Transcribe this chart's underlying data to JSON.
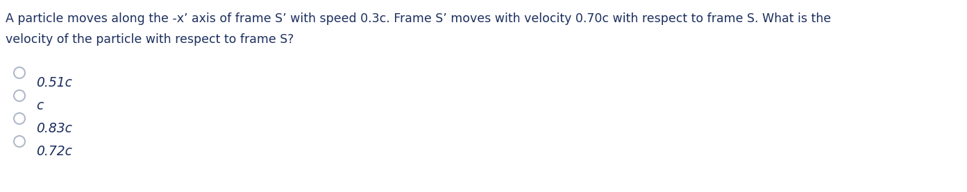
{
  "question_line1": "A particle moves along the -x’ axis of frame S’ with speed 0.3c. Frame S’ moves with velocity 0.70c with respect to frame S. What is the",
  "question_line2": "velocity of the particle with respect to frame S?",
  "options": [
    "0.51c",
    "c",
    "0.83c",
    "0.72c"
  ],
  "text_color": "#1c2f5e",
  "circle_color": "#b0b8c8",
  "bg_color": "#ffffff",
  "question_fontsize": 12.5,
  "option_fontsize": 13.5
}
